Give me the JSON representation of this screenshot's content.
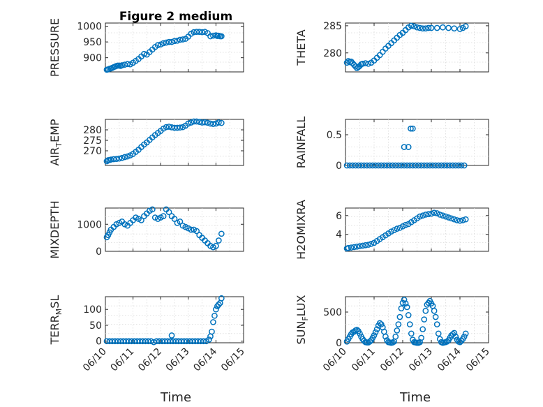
{
  "figure": {
    "title": "Figure 2 medium",
    "xlabel": "Time"
  },
  "chart_data": [
    {
      "type": "scatter",
      "id": "pressure",
      "ylabel": "PRESSURE",
      "ylim": [
        855,
        1010
      ],
      "yticks": [
        900,
        950,
        1000
      ],
      "yticklabels": [
        "900",
        "950",
        "1000"
      ],
      "xlim": [
        0,
        5
      ],
      "xticks": [
        0,
        1,
        2,
        3,
        4,
        5
      ],
      "show_xticklabels": false,
      "x": [
        0.05,
        0.1,
        0.15,
        0.2,
        0.25,
        0.3,
        0.35,
        0.4,
        0.45,
        0.5,
        0.55,
        0.6,
        0.7,
        0.8,
        0.9,
        1.0,
        1.1,
        1.2,
        1.3,
        1.4,
        1.5,
        1.6,
        1.7,
        1.8,
        1.9,
        2.0,
        2.1,
        2.2,
        2.3,
        2.4,
        2.5,
        2.6,
        2.7,
        2.8,
        2.9,
        3.0,
        3.1,
        3.2,
        3.3,
        3.4,
        3.5,
        3.6,
        3.7,
        3.8,
        3.9,
        4.0,
        4.05,
        4.1,
        4.15,
        4.2
      ],
      "y": [
        862,
        863,
        865,
        866,
        868,
        870,
        872,
        874,
        875,
        875,
        874,
        876,
        878,
        880,
        879,
        884,
        890,
        896,
        904,
        912,
        910,
        918,
        926,
        934,
        940,
        942,
        946,
        948,
        950,
        950,
        953,
        954,
        957,
        958,
        960,
        967,
        976,
        981,
        982,
        982,
        981,
        982,
        978,
        968,
        970,
        971,
        969,
        970,
        968,
        968
      ]
    },
    {
      "type": "scatter",
      "id": "theta",
      "ylabel": "THETA",
      "ylim": [
        276.5,
        285.5
      ],
      "yticks": [
        280,
        285
      ],
      "yticklabels": [
        "280",
        "285"
      ],
      "xlim": [
        0,
        5
      ],
      "xticks": [
        0,
        1,
        2,
        3,
        4,
        5
      ],
      "show_xticklabels": false,
      "x": [
        0.05,
        0.1,
        0.15,
        0.2,
        0.25,
        0.3,
        0.35,
        0.4,
        0.45,
        0.5,
        0.55,
        0.6,
        0.7,
        0.8,
        0.9,
        1.0,
        1.1,
        1.2,
        1.3,
        1.4,
        1.5,
        1.6,
        1.7,
        1.8,
        1.9,
        2.0,
        2.1,
        2.2,
        2.3,
        2.4,
        2.5,
        2.6,
        2.7,
        2.8,
        2.9,
        3.0,
        3.2,
        3.4,
        3.6,
        3.8,
        4.0,
        4.1,
        4.2
      ],
      "y": [
        278.2,
        278.5,
        278.3,
        278.4,
        278.1,
        277.8,
        277.5,
        277.2,
        277.4,
        277.6,
        277.9,
        278.0,
        278.1,
        278.0,
        278.2,
        278.6,
        279.1,
        279.6,
        280.2,
        280.8,
        281.3,
        281.8,
        282.3,
        282.8,
        283.3,
        283.7,
        284.2,
        284.7,
        285.0,
        284.9,
        284.7,
        284.6,
        284.5,
        284.5,
        284.6,
        284.6,
        284.6,
        284.7,
        284.6,
        284.5,
        284.4,
        284.6,
        284.9
      ]
    },
    {
      "type": "scatter",
      "id": "airtemp",
      "ylabel": "AIR_TEMP",
      "ylim": [
        263,
        285
      ],
      "yticks": [
        270,
        275,
        280
      ],
      "yticklabels": [
        "270",
        "275",
        "280"
      ],
      "xlim": [
        0,
        5
      ],
      "xticks": [
        0,
        1,
        2,
        3,
        4,
        5
      ],
      "show_xticklabels": false,
      "x": [
        0.05,
        0.1,
        0.15,
        0.2,
        0.3,
        0.4,
        0.5,
        0.6,
        0.7,
        0.8,
        0.9,
        1.0,
        1.1,
        1.2,
        1.3,
        1.4,
        1.5,
        1.6,
        1.7,
        1.8,
        1.9,
        2.0,
        2.1,
        2.2,
        2.3,
        2.4,
        2.5,
        2.6,
        2.7,
        2.8,
        2.9,
        3.0,
        3.1,
        3.2,
        3.3,
        3.4,
        3.5,
        3.6,
        3.7,
        3.8,
        3.9,
        4.0,
        4.1,
        4.2
      ],
      "y": [
        265,
        265.5,
        265.6,
        265.8,
        266.0,
        266.1,
        266.3,
        266.6,
        267.0,
        267.3,
        267.8,
        268.5,
        269.5,
        270.5,
        271.8,
        273.0,
        274.0,
        275.2,
        276.4,
        277.5,
        278.5,
        279.5,
        280.6,
        281.3,
        281.5,
        281.2,
        281.0,
        281.0,
        281.1,
        281.3,
        282.0,
        283.0,
        283.5,
        284.0,
        284.0,
        283.8,
        283.5,
        283.6,
        283.4,
        283.0,
        282.8,
        283.0,
        283.5,
        283.3
      ]
    },
    {
      "type": "scatter",
      "id": "rainfall",
      "ylabel": "RAINFALL",
      "ylim": [
        0,
        0.75
      ],
      "yticks": [
        0,
        0.5
      ],
      "yticklabels": [
        "0",
        "0.5"
      ],
      "xlim": [
        0,
        5
      ],
      "xticks": [
        0,
        1,
        2,
        3,
        4,
        5
      ],
      "show_xticklabels": false,
      "x": [
        0.05,
        0.15,
        0.25,
        0.35,
        0.45,
        0.55,
        0.65,
        0.75,
        0.85,
        0.95,
        1.05,
        1.15,
        1.25,
        1.35,
        1.45,
        1.55,
        1.65,
        1.75,
        1.85,
        1.95,
        2.05,
        2.15,
        2.25,
        2.35,
        2.45,
        2.55,
        2.65,
        2.75,
        2.85,
        2.95,
        3.05,
        3.15,
        3.25,
        3.35,
        3.45,
        3.55,
        3.65,
        3.75,
        3.85,
        3.95,
        4.05,
        4.15,
        2.05,
        2.2,
        2.28,
        2.35
      ],
      "y": [
        0,
        0,
        0,
        0,
        0,
        0,
        0,
        0,
        0,
        0,
        0,
        0,
        0,
        0,
        0,
        0,
        0,
        0,
        0,
        0,
        0,
        0,
        0,
        0,
        0,
        0,
        0,
        0,
        0,
        0,
        0,
        0,
        0,
        0,
        0,
        0,
        0,
        0,
        0,
        0,
        0,
        0,
        0.3,
        0.3,
        0.6,
        0.6
      ]
    },
    {
      "type": "scatter",
      "id": "mixdepth",
      "ylabel": "MIXDEPTH",
      "ylim": [
        0,
        1600
      ],
      "yticks": [
        0,
        1000
      ],
      "yticklabels": [
        "0",
        "1000"
      ],
      "xlim": [
        0,
        5
      ],
      "xticks": [
        0,
        1,
        2,
        3,
        4,
        5
      ],
      "show_xticklabels": false,
      "x": [
        0.05,
        0.1,
        0.15,
        0.2,
        0.3,
        0.4,
        0.5,
        0.6,
        0.7,
        0.8,
        0.9,
        1.0,
        1.1,
        1.2,
        1.3,
        1.4,
        1.5,
        1.6,
        1.7,
        1.8,
        1.9,
        2.0,
        2.1,
        2.2,
        2.3,
        2.4,
        2.5,
        2.6,
        2.7,
        2.8,
        2.9,
        3.0,
        3.1,
        3.2,
        3.3,
        3.4,
        3.5,
        3.6,
        3.7,
        3.8,
        3.9,
        4.0,
        4.1,
        4.2
      ],
      "y": [
        520,
        600,
        700,
        800,
        900,
        1000,
        1050,
        1100,
        1000,
        950,
        1050,
        1150,
        1250,
        1200,
        1150,
        1300,
        1400,
        1500,
        1550,
        1250,
        1200,
        1250,
        1300,
        1550,
        1450,
        1300,
        1200,
        1050,
        1100,
        950,
        900,
        850,
        800,
        800,
        750,
        600,
        500,
        400,
        300,
        200,
        150,
        200,
        400,
        650
      ]
    },
    {
      "type": "scatter",
      "id": "h2omixra",
      "ylabel": "H2OMIXRA",
      "ylim": [
        2.2,
        6.8
      ],
      "yticks": [
        4,
        6
      ],
      "yticklabels": [
        "4",
        "6"
      ],
      "xlim": [
        0,
        5
      ],
      "xticks": [
        0,
        1,
        2,
        3,
        4,
        5
      ],
      "show_xticklabels": false,
      "x": [
        0.05,
        0.1,
        0.2,
        0.3,
        0.4,
        0.5,
        0.6,
        0.7,
        0.8,
        0.9,
        1.0,
        1.1,
        1.2,
        1.3,
        1.4,
        1.5,
        1.6,
        1.7,
        1.8,
        1.9,
        2.0,
        2.1,
        2.2,
        2.3,
        2.4,
        2.5,
        2.6,
        2.7,
        2.8,
        2.9,
        3.0,
        3.1,
        3.2,
        3.3,
        3.4,
        3.5,
        3.6,
        3.7,
        3.8,
        3.9,
        4.0,
        4.1,
        4.2
      ],
      "y": [
        2.5,
        2.55,
        2.6,
        2.65,
        2.7,
        2.75,
        2.8,
        2.85,
        2.9,
        3.0,
        3.1,
        3.3,
        3.5,
        3.7,
        3.9,
        4.1,
        4.3,
        4.45,
        4.6,
        4.7,
        4.85,
        5.0,
        5.1,
        5.3,
        5.5,
        5.7,
        5.9,
        6.0,
        6.1,
        6.15,
        6.2,
        6.3,
        6.25,
        6.1,
        6.0,
        5.9,
        5.8,
        5.7,
        5.6,
        5.5,
        5.45,
        5.5,
        5.6
      ]
    },
    {
      "type": "scatter",
      "id": "terrmsl",
      "ylabel": "TERR_MSL",
      "ylim": [
        -5,
        140
      ],
      "yticks": [
        0,
        50,
        100
      ],
      "yticklabels": [
        "0",
        "50",
        "100"
      ],
      "xlim": [
        0,
        5
      ],
      "xticks": [
        0,
        1,
        2,
        3,
        4,
        5
      ],
      "xticklabels": [
        "06/10",
        "06/11",
        "06/12",
        "06/13",
        "06/14",
        "06/15"
      ],
      "show_xticklabels": true,
      "x": [
        0.05,
        0.15,
        0.25,
        0.35,
        0.45,
        0.55,
        0.65,
        0.75,
        0.85,
        0.95,
        1.05,
        1.15,
        1.25,
        1.35,
        1.45,
        1.55,
        1.65,
        1.75,
        1.85,
        1.95,
        2.05,
        2.15,
        2.25,
        2.35,
        2.45,
        2.55,
        2.65,
        2.75,
        2.85,
        2.95,
        3.05,
        3.15,
        3.25,
        3.35,
        3.45,
        3.55,
        3.65,
        3.75,
        3.8,
        3.85,
        3.9,
        3.95,
        4.0,
        4.05,
        4.1,
        4.15,
        4.2,
        2.4
      ],
      "y": [
        0,
        0,
        0,
        0,
        0,
        0,
        0,
        0,
        0,
        0,
        0,
        0,
        0,
        0,
        0,
        0,
        0,
        -3,
        0,
        0,
        0,
        0,
        0,
        0,
        0,
        0,
        0,
        0,
        0,
        0,
        0,
        0,
        0,
        0,
        0,
        0,
        0,
        5,
        15,
        30,
        60,
        80,
        100,
        110,
        115,
        120,
        135,
        18
      ]
    },
    {
      "type": "scatter",
      "id": "sunflux",
      "ylabel": "SUN_FLUX",
      "ylim": [
        0,
        750
      ],
      "yticks": [
        0,
        500
      ],
      "yticklabels": [
        "0",
        "500"
      ],
      "xlim": [
        0,
        5
      ],
      "xticks": [
        0,
        1,
        2,
        3,
        4,
        5
      ],
      "xticklabels": [
        "06/10",
        "06/11",
        "06/12",
        "06/13",
        "06/14",
        "06/15"
      ],
      "show_xticklabels": true,
      "x": [
        0.05,
        0.1,
        0.15,
        0.2,
        0.25,
        0.3,
        0.35,
        0.4,
        0.45,
        0.5,
        0.55,
        0.6,
        0.65,
        0.7,
        0.75,
        0.8,
        0.85,
        0.9,
        0.95,
        1.0,
        1.05,
        1.1,
        1.15,
        1.2,
        1.25,
        1.3,
        1.35,
        1.4,
        1.45,
        1.5,
        1.55,
        1.6,
        1.65,
        1.7,
        1.75,
        1.8,
        1.85,
        1.9,
        1.95,
        2.0,
        2.05,
        2.1,
        2.15,
        2.2,
        2.25,
        2.3,
        2.35,
        2.4,
        2.45,
        2.5,
        2.55,
        2.6,
        2.65,
        2.7,
        2.75,
        2.8,
        2.85,
        2.9,
        2.95,
        3.0,
        3.05,
        3.1,
        3.15,
        3.2,
        3.25,
        3.3,
        3.35,
        3.4,
        3.45,
        3.5,
        3.55,
        3.6,
        3.65,
        3.7,
        3.75,
        3.8,
        3.85,
        3.9,
        3.95,
        4.0,
        4.05,
        4.1,
        4.15,
        4.2
      ],
      "y": [
        20,
        60,
        100,
        140,
        170,
        180,
        200,
        210,
        190,
        150,
        100,
        60,
        30,
        10,
        5,
        5,
        20,
        40,
        80,
        120,
        170,
        220,
        280,
        320,
        300,
        250,
        180,
        100,
        40,
        10,
        5,
        0,
        5,
        20,
        100,
        200,
        300,
        420,
        560,
        650,
        700,
        640,
        580,
        450,
        300,
        150,
        50,
        10,
        5,
        0,
        0,
        10,
        80,
        220,
        380,
        520,
        620,
        650,
        680,
        640,
        600,
        520,
        420,
        300,
        150,
        60,
        10,
        0,
        5,
        10,
        20,
        40,
        80,
        120,
        140,
        160,
        100,
        50,
        20,
        10,
        30,
        60,
        100,
        150
      ]
    }
  ]
}
